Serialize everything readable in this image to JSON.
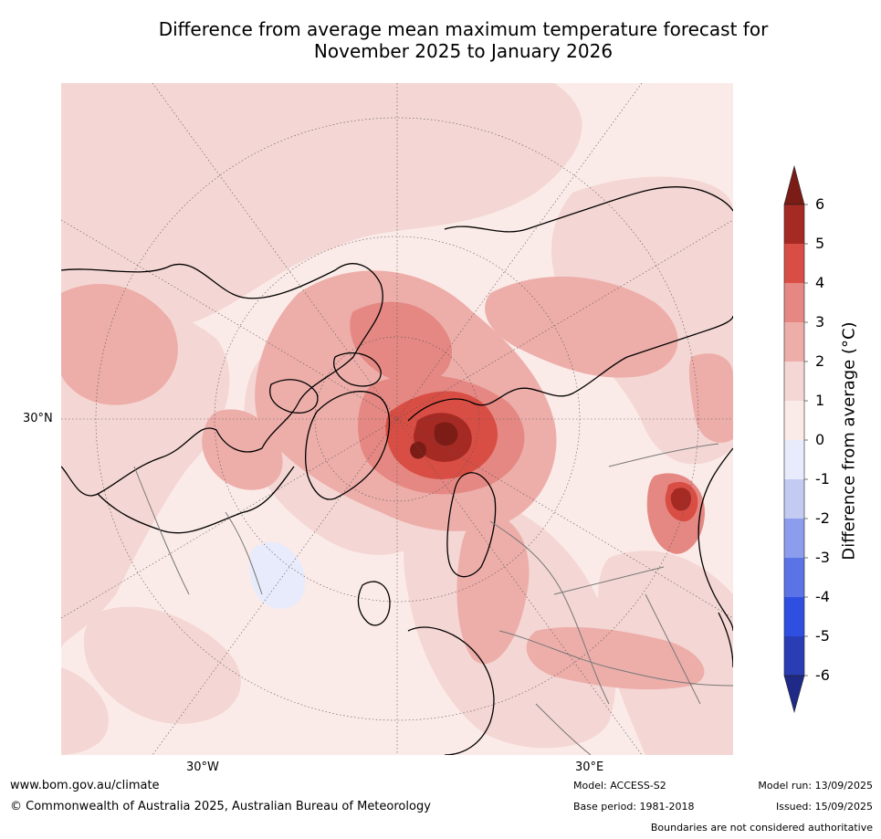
{
  "title_line1": "Difference from average mean maximum temperature forecast for",
  "title_line2": "November 2025 to January 2026",
  "map": {
    "projection": "north-polar-stereographic",
    "lat_label": "30°N",
    "lon_labels": {
      "west": "30°W",
      "east": "30°E"
    }
  },
  "colorbar": {
    "label": "Difference from average (°C)",
    "ticks": [
      "6",
      "5",
      "4",
      "3",
      "2",
      "1",
      "0",
      "-1",
      "-2",
      "-3",
      "-4",
      "-5",
      "-6"
    ],
    "colors": {
      "above_6": "#7b1d16",
      "5_6": "#a52a24",
      "4_5": "#d94e44",
      "3_4": "#e58883",
      "2_3": "#edaeaa",
      "1_2": "#f4d7d4",
      "0_1": "#fbebe8",
      "m1_0": "#e8ebfb",
      "m2_m1": "#c3cbf3",
      "m3_m2": "#8d9ded",
      "m4_m3": "#5a74e6",
      "m5_m4": "#2f4fe0",
      "m6_m5": "#2a3db5",
      "below_m6": "#1f2a88"
    }
  },
  "footer": {
    "website": "www.bom.gov.au/climate",
    "copyright": "© Commonwealth of Australia 2025, Australian Bureau of Meteorology",
    "model": "Model: ACCESS-S2",
    "base_period": "Base period: 1981-2018",
    "model_run": "Model run: 13/09/2025",
    "issued": "Issued: 15/09/2025",
    "disclaimer": "Boundaries are not considered authoritative"
  }
}
